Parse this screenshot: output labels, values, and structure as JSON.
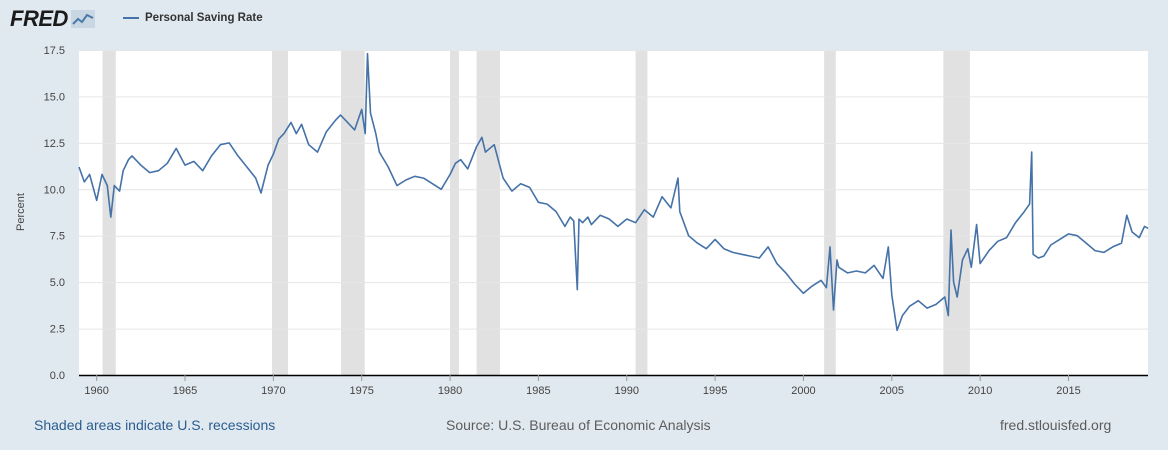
{
  "header": {
    "logo_text": "FRED",
    "legend_label": "Personal Saving Rate"
  },
  "footer": {
    "recessions_note": "Shaded areas indicate U.S. recessions",
    "source": "Source: U.S. Bureau of Economic Analysis",
    "site": "fred.stlouisfed.org"
  },
  "colors": {
    "series": "#4572a7",
    "recession": "#e1e1e1",
    "background": "#e1e9f0"
  },
  "chart_data": {
    "type": "line",
    "title": "",
    "xlabel": "",
    "ylabel": "Percent",
    "xlim": [
      1959.0,
      2019.5
    ],
    "ylim": [
      0,
      17.5
    ],
    "yticks": [
      "0.0",
      "2.5",
      "5.0",
      "7.5",
      "10.0",
      "12.5",
      "15.0",
      "17.5"
    ],
    "xticks": [
      "1960",
      "1965",
      "1970",
      "1975",
      "1980",
      "1985",
      "1990",
      "1995",
      "2000",
      "2005",
      "2010",
      "2015"
    ],
    "grid": true,
    "legend": "top-left",
    "recessions": [
      [
        1960.33,
        1961.08
      ],
      [
        1969.92,
        1970.83
      ],
      [
        1973.83,
        1975.17
      ],
      [
        1980.0,
        1980.5
      ],
      [
        1981.5,
        1982.83
      ],
      [
        1990.5,
        1991.17
      ],
      [
        2001.17,
        2001.83
      ],
      [
        2007.92,
        2009.42
      ]
    ],
    "series": [
      {
        "name": "Personal Saving Rate",
        "x": [
          1959.0,
          1959.3,
          1959.6,
          1960.0,
          1960.3,
          1960.6,
          1960.8,
          1961.0,
          1961.3,
          1961.5,
          1961.8,
          1962.0,
          1962.5,
          1963.0,
          1963.5,
          1964.0,
          1964.5,
          1965.0,
          1965.5,
          1966.0,
          1966.5,
          1967.0,
          1967.5,
          1968.0,
          1968.5,
          1969.0,
          1969.3,
          1969.7,
          1970.0,
          1970.3,
          1970.6,
          1971.0,
          1971.3,
          1971.6,
          1972.0,
          1972.5,
          1973.0,
          1973.5,
          1973.8,
          1974.2,
          1974.6,
          1975.0,
          1975.2,
          1975.33,
          1975.5,
          1975.8,
          1976.0,
          1976.5,
          1977.0,
          1977.5,
          1978.0,
          1978.5,
          1979.0,
          1979.5,
          1980.0,
          1980.3,
          1980.6,
          1981.0,
          1981.5,
          1981.8,
          1982.0,
          1982.5,
          1983.0,
          1983.5,
          1984.0,
          1984.5,
          1985.0,
          1985.5,
          1986.0,
          1986.5,
          1986.8,
          1987.0,
          1987.2,
          1987.3,
          1987.5,
          1987.8,
          1988.0,
          1988.5,
          1989.0,
          1989.5,
          1990.0,
          1990.5,
          1991.0,
          1991.5,
          1992.0,
          1992.5,
          1992.9,
          1993.0,
          1993.5,
          1994.0,
          1994.5,
          1995.0,
          1995.5,
          1996.0,
          1996.5,
          1997.0,
          1997.5,
          1998.0,
          1998.5,
          1999.0,
          1999.5,
          2000.0,
          2000.5,
          2001.0,
          2001.3,
          2001.5,
          2001.7,
          2001.9,
          2002.0,
          2002.5,
          2003.0,
          2003.5,
          2004.0,
          2004.5,
          2004.8,
          2005.0,
          2005.3,
          2005.6,
          2006.0,
          2006.5,
          2007.0,
          2007.5,
          2008.0,
          2008.2,
          2008.35,
          2008.5,
          2008.7,
          2009.0,
          2009.3,
          2009.5,
          2009.8,
          2010.0,
          2010.5,
          2011.0,
          2011.5,
          2012.0,
          2012.5,
          2012.8,
          2012.92,
          2013.0,
          2013.3,
          2013.6,
          2014.0,
          2014.5,
          2015.0,
          2015.5,
          2016.0,
          2016.5,
          2017.0,
          2017.5,
          2018.0,
          2018.3,
          2018.6,
          2019.0,
          2019.3,
          2019.5
        ],
        "values": [
          11.2,
          10.4,
          10.8,
          9.4,
          10.8,
          10.2,
          8.5,
          10.2,
          9.9,
          11.0,
          11.6,
          11.8,
          11.3,
          10.9,
          11.0,
          11.4,
          12.2,
          11.3,
          11.5,
          11.0,
          11.8,
          12.4,
          12.5,
          11.8,
          11.2,
          10.6,
          9.8,
          11.3,
          11.9,
          12.7,
          13.0,
          13.6,
          13.0,
          13.5,
          12.4,
          12.0,
          13.1,
          13.7,
          14.0,
          13.6,
          13.2,
          14.3,
          13.0,
          17.3,
          14.1,
          13.0,
          12.0,
          11.2,
          10.2,
          10.5,
          10.7,
          10.6,
          10.3,
          10.0,
          10.8,
          11.4,
          11.6,
          11.1,
          12.3,
          12.8,
          12.0,
          12.4,
          10.6,
          9.9,
          10.3,
          10.1,
          9.3,
          9.2,
          8.8,
          8.0,
          8.5,
          8.3,
          4.6,
          8.4,
          8.2,
          8.5,
          8.1,
          8.6,
          8.4,
          8.0,
          8.4,
          8.2,
          8.9,
          8.5,
          9.6,
          9.0,
          10.6,
          8.8,
          7.5,
          7.1,
          6.8,
          7.3,
          6.8,
          6.6,
          6.5,
          6.4,
          6.3,
          6.9,
          6.0,
          5.5,
          4.9,
          4.4,
          4.8,
          5.1,
          4.7,
          6.9,
          3.5,
          6.2,
          5.8,
          5.5,
          5.6,
          5.5,
          5.9,
          5.2,
          6.9,
          4.3,
          2.4,
          3.2,
          3.7,
          4.0,
          3.6,
          3.8,
          4.2,
          3.2,
          7.8,
          5.0,
          4.2,
          6.2,
          6.8,
          5.8,
          8.1,
          6.0,
          6.7,
          7.2,
          7.4,
          8.2,
          8.8,
          9.2,
          12.0,
          6.5,
          6.3,
          6.4,
          7.0,
          7.3,
          7.6,
          7.5,
          7.1,
          6.7,
          6.6,
          6.9,
          7.1,
          8.6,
          7.7,
          7.4,
          8.0,
          7.9
        ]
      }
    ]
  }
}
